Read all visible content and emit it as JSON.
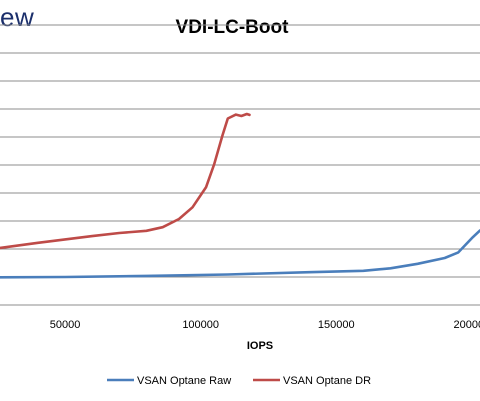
{
  "brand": {
    "text": "ew"
  },
  "chart_data": {
    "type": "line",
    "title": "VDI-LC-Boot",
    "xlabel": "IOPS",
    "ylabel": "",
    "xlim": [
      26000,
      203000
    ],
    "x_ticks": [
      50000,
      100000,
      150000,
      200000
    ],
    "x_tick_labels": [
      "50000",
      "100000",
      "150000",
      "200000"
    ],
    "y_gridlines": 10,
    "grid": true,
    "legend": "bottom",
    "series": [
      {
        "name": "VSAN Optane Raw",
        "color": "#4a7ebb",
        "points": [
          [
            26000,
            0.99
          ],
          [
            50000,
            1.0
          ],
          [
            80000,
            1.04
          ],
          [
            110000,
            1.09
          ],
          [
            140000,
            1.17
          ],
          [
            160000,
            1.22
          ],
          [
            170000,
            1.31
          ],
          [
            180000,
            1.47
          ],
          [
            190000,
            1.68
          ],
          [
            195000,
            1.88
          ],
          [
            200000,
            2.39
          ],
          [
            203000,
            2.66
          ]
        ]
      },
      {
        "name": "VSAN Optane DR",
        "color": "#be4b48",
        "points": [
          [
            26000,
            2.04
          ],
          [
            40000,
            2.22
          ],
          [
            60000,
            2.46
          ],
          [
            70000,
            2.57
          ],
          [
            80000,
            2.65
          ],
          [
            86000,
            2.78
          ],
          [
            92000,
            3.07
          ],
          [
            97000,
            3.49
          ],
          [
            102000,
            4.21
          ],
          [
            105000,
            5.03
          ],
          [
            108000,
            6.05
          ],
          [
            110000,
            6.66
          ],
          [
            113000,
            6.8
          ],
          [
            115000,
            6.75
          ],
          [
            117000,
            6.82
          ],
          [
            118000,
            6.79
          ]
        ]
      }
    ]
  }
}
